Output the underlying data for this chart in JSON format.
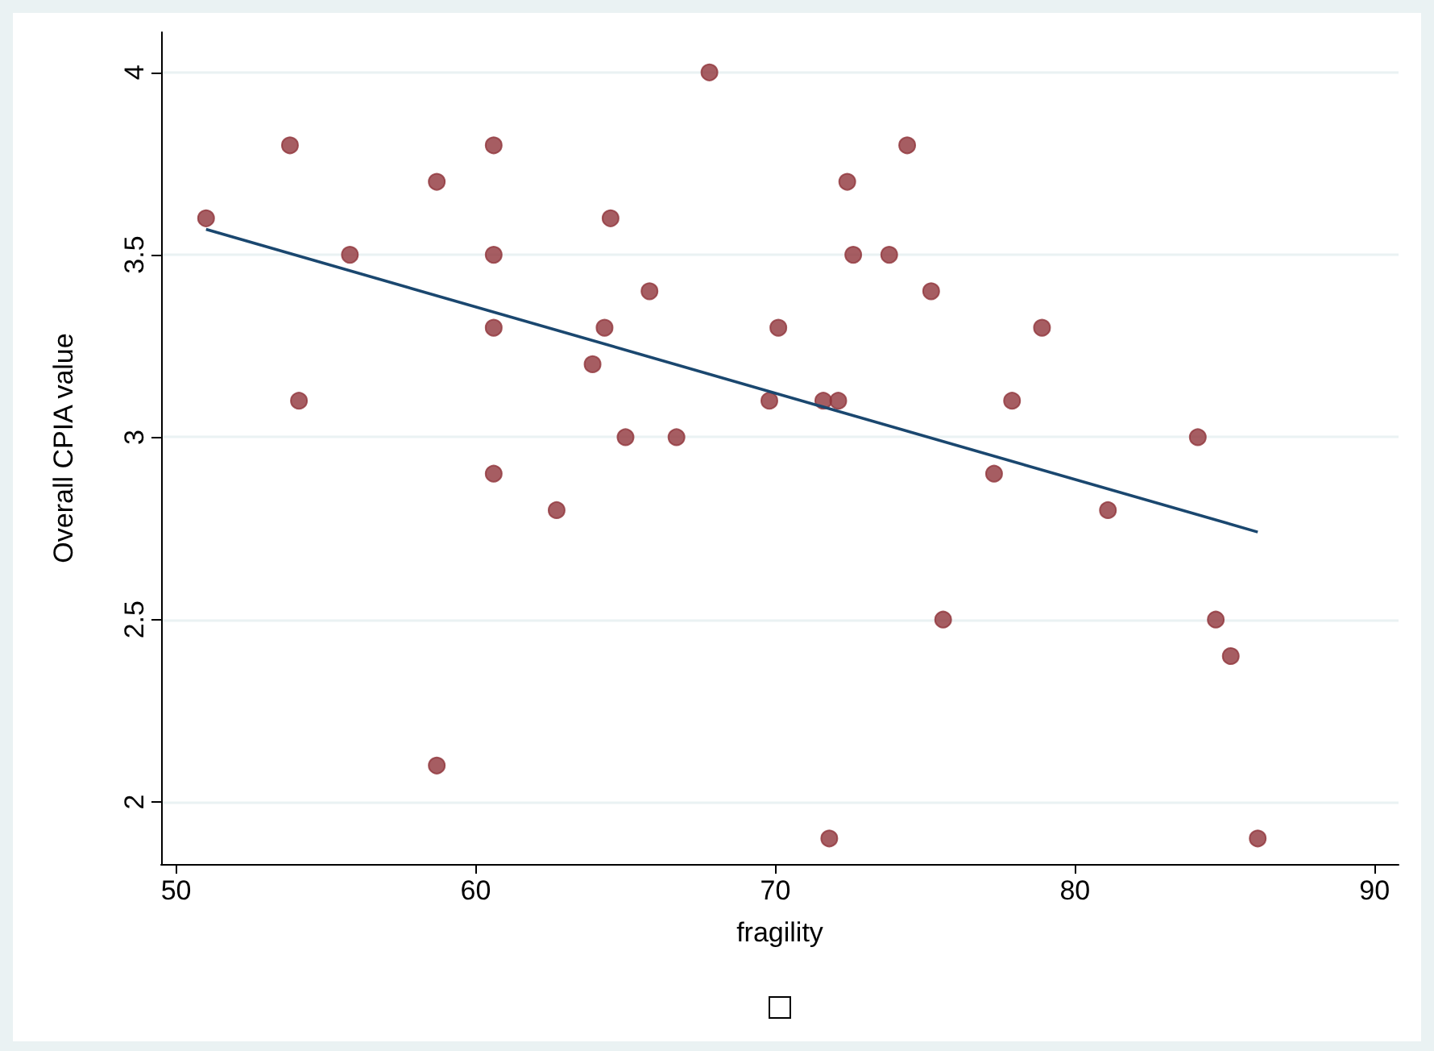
{
  "chart_data": {
    "type": "scatter",
    "xlabel": "fragility",
    "ylabel": "Overall CPIA value",
    "xlim": [
      49.5,
      90.8
    ],
    "xticks": [
      50,
      60,
      70,
      80,
      90
    ],
    "ylim": [
      1.83,
      4.11
    ],
    "yticks": [
      2,
      2.5,
      3,
      3.5,
      4
    ],
    "grid": "y",
    "marker": "circle",
    "series": [
      {
        "color": "#90353b",
        "x": [
          51.0,
          53.8,
          54.1,
          55.8,
          58.7,
          58.7,
          60.6,
          60.6,
          60.6,
          60.6,
          62.7,
          63.9,
          64.3,
          64.5,
          65.0,
          65.8,
          66.7,
          67.8,
          69.8,
          70.1,
          71.6,
          71.8,
          72.1,
          72.4,
          72.6,
          73.8,
          74.4,
          75.2,
          75.6,
          77.3,
          77.9,
          78.9,
          81.1,
          84.1,
          84.7,
          85.2,
          86.1
        ],
        "values": [
          3.6,
          3.8,
          3.1,
          3.5,
          3.7,
          2.1,
          3.8,
          3.5,
          3.3,
          2.9,
          2.8,
          3.2,
          3.3,
          3.6,
          3.0,
          3.4,
          3.0,
          4.0,
          3.1,
          3.3,
          3.1,
          1.9,
          3.1,
          3.7,
          3.5,
          3.5,
          3.8,
          3.4,
          2.5,
          2.9,
          3.1,
          3.3,
          2.8,
          3.0,
          2.5,
          2.4,
          1.9
        ]
      },
      {
        "type": "line",
        "marker": "none",
        "color": "#1a476f",
        "x": [
          51.0,
          86.1
        ],
        "values": [
          3.57,
          2.74
        ]
      }
    ]
  }
}
